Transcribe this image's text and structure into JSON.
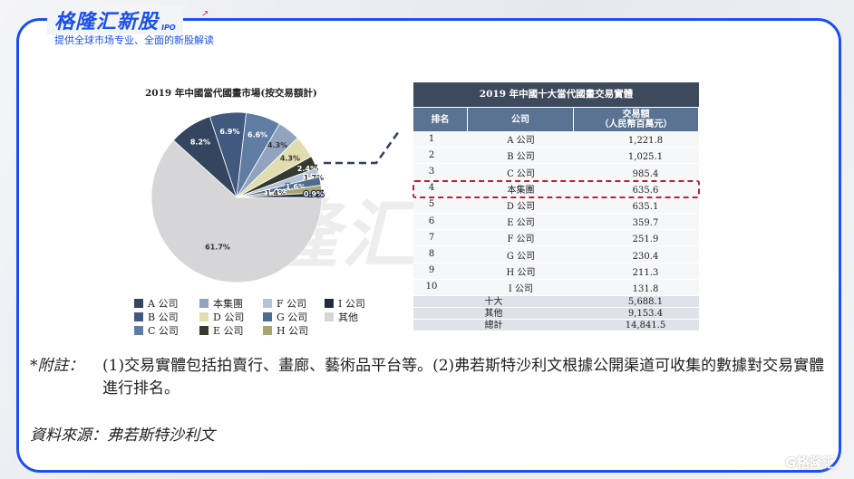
{
  "header": {
    "brand": "格隆汇新股",
    "brand_suffix": "IPO",
    "tagline": "提供全球市场专业、全面的新股解读",
    "accent": "#1a4ff0"
  },
  "watermark": {
    "text": "格隆汇新股",
    "suffix": "IPO"
  },
  "corner_logo": "G格隆汇",
  "pie": {
    "title": "2019 年中國當代國畫市場(按交易額計)",
    "slices": [
      {
        "name": "其他",
        "value": 61.7,
        "label": "61.7%",
        "color": "#d6d6d9"
      },
      {
        "name": "A 公司",
        "value": 8.2,
        "label": "8.2%",
        "color": "#34465f"
      },
      {
        "name": "B 公司",
        "value": 6.9,
        "label": "6.9%",
        "color": "#42597f"
      },
      {
        "name": "C 公司",
        "value": 6.6,
        "label": "6.6%",
        "color": "#5f7ca3"
      },
      {
        "name": "本集團",
        "value": 4.3,
        "label": "4.3%",
        "color": "#91a3bf"
      },
      {
        "name": "D 公司",
        "value": 4.3,
        "label": "4.3%",
        "color": "#e1ddb1"
      },
      {
        "name": "E 公司",
        "value": 2.4,
        "label": "2.4%",
        "color": "#353a2f"
      },
      {
        "name": "F 公司",
        "value": 1.7,
        "label": "1.7%",
        "color": "#b5c4d6"
      },
      {
        "name": "G 公司",
        "value": 1.6,
        "label": "1.6%",
        "color": "#4e6b90"
      },
      {
        "name": "H 公司",
        "value": 1.4,
        "label": "1.4%",
        "color": "#a9a56d"
      },
      {
        "name": "I 公司",
        "value": 0.9,
        "label": "0.9%",
        "color": "#1f2a44"
      }
    ],
    "legend_order": [
      "A 公司",
      "本集團",
      "F 公司",
      "I 公司",
      "B 公司",
      "D 公司",
      "G 公司",
      "其他",
      "C 公司",
      "E 公司",
      "H 公司"
    ]
  },
  "table": {
    "title": "2019 年中國十大當代國畫交易實體",
    "headers": [
      "排名",
      "公司",
      "交易額\n（人民幣百萬元）"
    ],
    "rows": [
      [
        "1",
        "A 公司",
        "1,221.8"
      ],
      [
        "2",
        "B 公司",
        "1,025.1"
      ],
      [
        "3",
        "C 公司",
        "985.4"
      ],
      [
        "4",
        "本集團",
        "635.6"
      ],
      [
        "5",
        "D 公司",
        "635.1"
      ],
      [
        "6",
        "E 公司",
        "359.7"
      ],
      [
        "7",
        "F 公司",
        "251.9"
      ],
      [
        "8",
        "G 公司",
        "230.4"
      ],
      [
        "9",
        "H 公司",
        "211.3"
      ],
      [
        "10",
        "I 公司",
        "131.8"
      ]
    ],
    "summary": [
      [
        "十大",
        "5,688.1"
      ],
      [
        "其他",
        "9,153.4"
      ],
      [
        "總計",
        "14,841.5"
      ]
    ],
    "highlight_color": "#c0202a"
  },
  "footnote": {
    "label": "*附註：",
    "text": "(1)交易實體包括拍賣行、畫廊、藝術品平台等。(2)弗若斯特沙利文根據公開渠道可收集的數據對交易實體進行排名。"
  },
  "source": "資料來源：弗若斯特沙利文"
}
